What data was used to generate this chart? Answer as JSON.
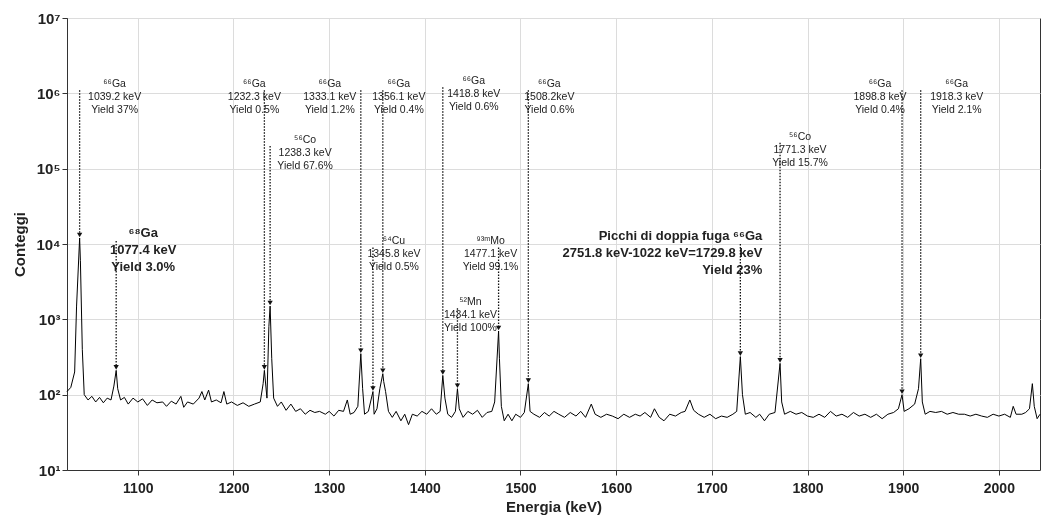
{
  "chart_data": {
    "type": "line",
    "xlabel": "Energia (keV)",
    "ylabel": "Conteggi",
    "log": "y",
    "grid": true,
    "xlim": [
      1026,
      2043
    ],
    "xticks": [
      1100,
      1200,
      1300,
      1400,
      1500,
      1600,
      1700,
      1800,
      1900,
      2000
    ],
    "ylim": [
      10,
      10000000
    ],
    "yticks": [
      {
        "value": 10,
        "label": "10¹"
      },
      {
        "value": 100,
        "label": "10²"
      },
      {
        "value": 1000,
        "label": "10³"
      },
      {
        "value": 10000,
        "label": "10⁴"
      },
      {
        "value": 100000,
        "label": "10⁵"
      },
      {
        "value": 1000000,
        "label": "10⁶"
      },
      {
        "value": 10000000,
        "label": "10⁷"
      }
    ],
    "x": [
      1026,
      1030,
      1034,
      1036,
      1039.2,
      1040,
      1042,
      1044,
      1048,
      1052,
      1056,
      1060,
      1064,
      1068,
      1072,
      1075,
      1077.4,
      1079,
      1082,
      1086,
      1090,
      1095,
      1100,
      1105,
      1110,
      1115,
      1120,
      1126,
      1130,
      1135,
      1140,
      1145,
      1148,
      1152,
      1158,
      1164,
      1167,
      1170,
      1174,
      1177,
      1182,
      1187,
      1190,
      1193,
      1198,
      1204,
      1210,
      1216,
      1222,
      1228,
      1231,
      1232.3,
      1235,
      1237,
      1238.3,
      1240,
      1242,
      1246,
      1250,
      1255,
      1260,
      1265,
      1270,
      1275,
      1280,
      1285,
      1290,
      1296,
      1300,
      1305,
      1310,
      1315,
      1319,
      1322,
      1326,
      1330,
      1333.1,
      1335,
      1337,
      1341,
      1345.8,
      1347,
      1350,
      1353,
      1356.1,
      1357,
      1359,
      1362,
      1366,
      1370,
      1375,
      1379,
      1383,
      1387,
      1392,
      1397,
      1402,
      1407,
      1412,
      1416,
      1418.8,
      1421,
      1424,
      1428,
      1432,
      1434.1,
      1436,
      1440,
      1445,
      1450,
      1455,
      1460,
      1465,
      1470,
      1473,
      1477.1,
      1478,
      1480,
      1483,
      1487,
      1491,
      1495,
      1500,
      1504,
      1508.2,
      1510,
      1514,
      1520,
      1525,
      1530,
      1535,
      1540,
      1546,
      1552,
      1558,
      1563,
      1568,
      1574,
      1578,
      1584,
      1590,
      1596,
      1602,
      1608,
      1614,
      1620,
      1625,
      1630,
      1636,
      1640,
      1645,
      1650,
      1656,
      1662,
      1668,
      1672,
      1677,
      1681,
      1686,
      1692,
      1698,
      1704,
      1710,
      1716,
      1722,
      1726,
      1729.8,
      1732,
      1735,
      1740,
      1746,
      1750,
      1755,
      1760,
      1766,
      1771.3,
      1773,
      1776,
      1782,
      1788,
      1794,
      1800,
      1806,
      1812,
      1818,
      1824,
      1830,
      1836,
      1842,
      1848,
      1854,
      1860,
      1866,
      1872,
      1878,
      1884,
      1890,
      1895,
      1898.8,
      1901,
      1906,
      1912,
      1916,
      1918.3,
      1920,
      1923,
      1928,
      1934,
      1940,
      1946,
      1952,
      1958,
      1964,
      1970,
      1976,
      1982,
      1988,
      1994,
      2000,
      2006,
      2012,
      2015,
      2018,
      2024,
      2028,
      2032,
      2035,
      2037,
      2040,
      2043
    ],
    "series": [
      {
        "color": "#000000",
        "values": [
          110,
          125,
          200,
          1500,
          12000,
          6000,
          400,
          100,
          85,
          95,
          80,
          92,
          78,
          90,
          85,
          130,
          210,
          120,
          85,
          92,
          75,
          90,
          80,
          88,
          72,
          85,
          78,
          80,
          70,
          82,
          75,
          95,
          68,
          80,
          75,
          90,
          110,
          85,
          115,
          80,
          85,
          78,
          110,
          75,
          80,
          72,
          78,
          70,
          75,
          80,
          140,
          210,
          90,
          800,
          1500,
          300,
          90,
          70,
          80,
          62,
          75,
          60,
          65,
          55,
          62,
          58,
          60,
          55,
          60,
          52,
          62,
          60,
          85,
          55,
          58,
          70,
          350,
          120,
          55,
          60,
          110,
          55,
          65,
          120,
          190,
          150,
          110,
          60,
          50,
          60,
          45,
          55,
          40,
          55,
          52,
          60,
          55,
          65,
          55,
          60,
          180,
          90,
          55,
          50,
          60,
          120,
          65,
          50,
          60,
          55,
          62,
          50,
          58,
          60,
          80,
          700,
          300,
          70,
          45,
          55,
          45,
          55,
          50,
          58,
          140,
          60,
          55,
          50,
          58,
          52,
          60,
          55,
          50,
          58,
          52,
          60,
          50,
          75,
          55,
          50,
          55,
          52,
          48,
          55,
          50,
          55,
          52,
          58,
          50,
          65,
          50,
          45,
          55,
          52,
          58,
          60,
          85,
          62,
          55,
          50,
          55,
          48,
          52,
          50,
          55,
          60,
          320,
          100,
          55,
          58,
          50,
          55,
          45,
          55,
          58,
          260,
          80,
          55,
          60,
          55,
          58,
          52,
          50,
          55,
          50,
          60,
          52,
          55,
          50,
          58,
          52,
          55,
          50,
          55,
          48,
          55,
          58,
          65,
          100,
          60,
          65,
          75,
          120,
          300,
          80,
          55,
          60,
          58,
          60,
          55,
          58,
          55,
          55,
          52,
          55,
          52,
          50,
          55,
          52,
          55,
          50,
          70,
          55,
          55,
          58,
          65,
          140,
          70,
          48,
          55
        ]
      }
    ],
    "annotations": [
      {
        "text": "⁶⁶Ga\n1039.2 keV\nYield 37%",
        "x": 1039.2,
        "y": 12000
      },
      {
        "text": "⁶⁸Ga\n1077.4 keV\nYield 3.0%",
        "x": 1077.4,
        "y": 210
      },
      {
        "text": "⁶⁶Ga\n1232.3 keV\nYield 0.5%",
        "x": 1232.3,
        "y": 210
      },
      {
        "text": "⁵⁶Co\n1238.3 keV\nYield 67.6%",
        "x": 1238.3,
        "y": 1500
      },
      {
        "text": "⁶⁶Ga\n1333.1 keV\nYield 1.2%",
        "x": 1333.1,
        "y": 350
      },
      {
        "text": "⁶⁴Cu\n1345.8 keV\nYield 0.5%",
        "x": 1345.8,
        "y": 110
      },
      {
        "text": "⁶⁶Ga\n1356.1 keV\nYield 0.4%",
        "x": 1356.1,
        "y": 190
      },
      {
        "text": "⁶⁶Ga\n1418.8 keV\nYield 0.6%",
        "x": 1418.8,
        "y": 180
      },
      {
        "text": "⁵²Mn\n1434.1 keV\nYield 100%",
        "x": 1434.1,
        "y": 120
      },
      {
        "text": "⁹³ᵐMo\n1477.1 keV\nYield 99.1%",
        "x": 1477.1,
        "y": 700
      },
      {
        "text": "⁶⁶Ga\n1508.2keV\nYield 0.6%",
        "x": 1508.2,
        "y": 140
      },
      {
        "text": "Picchi di doppia fuga ⁶⁶Ga\n2751.8 keV-1022 keV=1729.8 keV\nYield 23%",
        "x": 1729.8,
        "y": 320
      },
      {
        "text": "⁵⁶Co\n1771.3 keV\nYield 15.7%",
        "x": 1771.3,
        "y": 260
      },
      {
        "text": "⁶⁶Ga\n1898.8 keV\nYield 0.4%",
        "x": 1898.8,
        "y": 100
      },
      {
        "text": "⁶⁶Ga\n1918.3 keV\nYield 2.1%",
        "x": 1918.3,
        "y": 300
      }
    ]
  }
}
